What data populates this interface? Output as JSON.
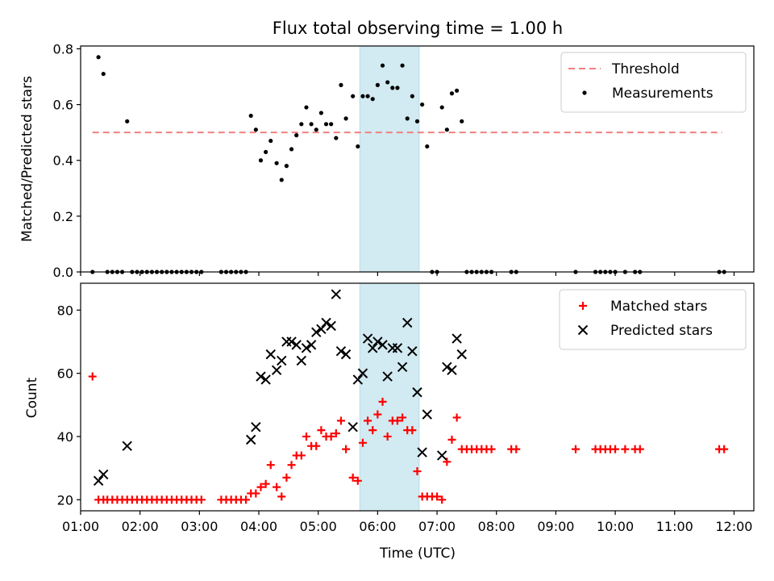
{
  "chart_data": [
    {
      "type": "scatter",
      "title": "Flux total observing time = 1.00 h",
      "xlabel": "",
      "ylabel": "Matched/Predicted stars",
      "xlim": [
        "01:00",
        "12:20"
      ],
      "ylim": [
        0,
        0.81
      ],
      "yticks": [
        0,
        0.2,
        0.4,
        0.6,
        0.8
      ],
      "yticklabels": [
        "0.0",
        "0.2",
        "0.4",
        "0.6",
        "0.8"
      ],
      "highlight_band": {
        "from": "05:42",
        "to": "06:42",
        "color": "#add8e6"
      },
      "grid": false,
      "legend_position": "top-right",
      "threshold": {
        "name": "Threshold",
        "value": 0.5,
        "from": "01:12",
        "to": "11:48",
        "color": "#f08080"
      },
      "series": [
        {
          "name": "Measurements",
          "color": "#000000",
          "points": [
            [
              "01:12",
              0
            ],
            [
              "01:18",
              0.77
            ],
            [
              "01:23",
              0.71
            ],
            [
              "01:27",
              0
            ],
            [
              "01:32",
              0
            ],
            [
              "01:37",
              0
            ],
            [
              "01:42",
              0
            ],
            [
              "01:47",
              0.54
            ],
            [
              "01:52",
              0
            ],
            [
              "01:57",
              0
            ],
            [
              "02:02",
              0
            ],
            [
              "02:07",
              0
            ],
            [
              "02:12",
              0
            ],
            [
              "02:17",
              0
            ],
            [
              "02:22",
              0
            ],
            [
              "02:27",
              0
            ],
            [
              "02:32",
              0
            ],
            [
              "02:37",
              0
            ],
            [
              "02:42",
              0
            ],
            [
              "02:47",
              0
            ],
            [
              "02:52",
              0
            ],
            [
              "02:57",
              0
            ],
            [
              "03:02",
              0
            ],
            [
              "03:22",
              0
            ],
            [
              "03:27",
              0
            ],
            [
              "03:32",
              0
            ],
            [
              "03:37",
              0
            ],
            [
              "03:42",
              0
            ],
            [
              "03:47",
              0
            ],
            [
              "03:52",
              0.56
            ],
            [
              "03:57",
              0.51
            ],
            [
              "04:02",
              0.4
            ],
            [
              "04:07",
              0.43
            ],
            [
              "04:12",
              0.47
            ],
            [
              "04:18",
              0.39
            ],
            [
              "04:23",
              0.33
            ],
            [
              "04:28",
              0.38
            ],
            [
              "04:33",
              0.44
            ],
            [
              "04:38",
              0.49
            ],
            [
              "04:43",
              0.53
            ],
            [
              "04:48",
              0.59
            ],
            [
              "04:53",
              0.53
            ],
            [
              "04:58",
              0.51
            ],
            [
              "05:03",
              0.57
            ],
            [
              "05:08",
              0.53
            ],
            [
              "05:13",
              0.53
            ],
            [
              "05:18",
              0.48
            ],
            [
              "05:23",
              0.67
            ],
            [
              "05:28",
              0.55
            ],
            [
              "05:35",
              0.63
            ],
            [
              "05:40",
              0.45
            ],
            [
              "05:45",
              0.63
            ],
            [
              "05:50",
              0.63
            ],
            [
              "05:55",
              0.62
            ],
            [
              "06:00",
              0.67
            ],
            [
              "06:05",
              0.74
            ],
            [
              "06:10",
              0.68
            ],
            [
              "06:15",
              0.66
            ],
            [
              "06:20",
              0.66
            ],
            [
              "06:25",
              0.74
            ],
            [
              "06:30",
              0.55
            ],
            [
              "06:35",
              0.63
            ],
            [
              "06:40",
              0.54
            ],
            [
              "06:45",
              0.6
            ],
            [
              "06:50",
              0.45
            ],
            [
              "06:55",
              0
            ],
            [
              "07:00",
              0
            ],
            [
              "07:05",
              0.59
            ],
            [
              "07:10",
              0.51
            ],
            [
              "07:15",
              0.64
            ],
            [
              "07:20",
              0.65
            ],
            [
              "07:25",
              0.54
            ],
            [
              "07:30",
              0
            ],
            [
              "07:35",
              0
            ],
            [
              "07:40",
              0
            ],
            [
              "07:45",
              0
            ],
            [
              "07:50",
              0
            ],
            [
              "07:55",
              0
            ],
            [
              "08:15",
              0
            ],
            [
              "08:20",
              0
            ],
            [
              "09:20",
              0
            ],
            [
              "09:40",
              0
            ],
            [
              "09:45",
              0
            ],
            [
              "09:50",
              0
            ],
            [
              "09:55",
              0
            ],
            [
              "10:00",
              0
            ],
            [
              "10:10",
              0
            ],
            [
              "10:20",
              0
            ],
            [
              "10:25",
              0
            ],
            [
              "11:45",
              0
            ],
            [
              "11:50",
              0
            ]
          ]
        }
      ]
    },
    {
      "type": "scatter",
      "title": "",
      "xlabel": "Time (UTC)",
      "ylabel": "Count",
      "xlim": [
        "01:00",
        "12:20"
      ],
      "ylim": [
        16.5,
        88.5
      ],
      "yticks": [
        20,
        40,
        60,
        80
      ],
      "yticklabels": [
        "20",
        "40",
        "60",
        "80"
      ],
      "xticks": [
        "01:00",
        "02:00",
        "03:00",
        "04:00",
        "05:00",
        "06:00",
        "07:00",
        "08:00",
        "09:00",
        "10:00",
        "11:00",
        "12:00"
      ],
      "highlight_band": {
        "from": "05:42",
        "to": "06:42",
        "color": "#add8e6"
      },
      "grid": false,
      "legend_position": "top-right",
      "series": [
        {
          "name": "Matched stars",
          "marker": "plus",
          "color": "#ff0000",
          "points": [
            [
              "01:12",
              59
            ],
            [
              "01:18",
              20
            ],
            [
              "01:23",
              20
            ],
            [
              "01:27",
              20
            ],
            [
              "01:32",
              20
            ],
            [
              "01:37",
              20
            ],
            [
              "01:42",
              20
            ],
            [
              "01:47",
              20
            ],
            [
              "01:52",
              20
            ],
            [
              "01:57",
              20
            ],
            [
              "02:02",
              20
            ],
            [
              "02:07",
              20
            ],
            [
              "02:12",
              20
            ],
            [
              "02:17",
              20
            ],
            [
              "02:22",
              20
            ],
            [
              "02:27",
              20
            ],
            [
              "02:32",
              20
            ],
            [
              "02:37",
              20
            ],
            [
              "02:42",
              20
            ],
            [
              "02:47",
              20
            ],
            [
              "02:52",
              20
            ],
            [
              "02:57",
              20
            ],
            [
              "03:02",
              20
            ],
            [
              "03:22",
              20
            ],
            [
              "03:27",
              20
            ],
            [
              "03:32",
              20
            ],
            [
              "03:37",
              20
            ],
            [
              "03:42",
              20
            ],
            [
              "03:47",
              20
            ],
            [
              "03:52",
              22
            ],
            [
              "03:57",
              22
            ],
            [
              "04:02",
              24
            ],
            [
              "04:07",
              25
            ],
            [
              "04:12",
              31
            ],
            [
              "04:18",
              24
            ],
            [
              "04:23",
              21
            ],
            [
              "04:28",
              27
            ],
            [
              "04:33",
              31
            ],
            [
              "04:38",
              34
            ],
            [
              "04:43",
              34
            ],
            [
              "04:48",
              40
            ],
            [
              "04:53",
              37
            ],
            [
              "04:58",
              37
            ],
            [
              "05:03",
              42
            ],
            [
              "05:08",
              40
            ],
            [
              "05:13",
              40
            ],
            [
              "05:18",
              41
            ],
            [
              "05:23",
              45
            ],
            [
              "05:28",
              36
            ],
            [
              "05:35",
              27
            ],
            [
              "05:40",
              26
            ],
            [
              "05:45",
              38
            ],
            [
              "05:50",
              45
            ],
            [
              "05:55",
              42
            ],
            [
              "06:00",
              47
            ],
            [
              "06:05",
              51
            ],
            [
              "06:10",
              40
            ],
            [
              "06:15",
              45
            ],
            [
              "06:20",
              45
            ],
            [
              "06:25",
              46
            ],
            [
              "06:30",
              42
            ],
            [
              "06:35",
              42
            ],
            [
              "06:40",
              29
            ],
            [
              "06:45",
              21
            ],
            [
              "06:50",
              21
            ],
            [
              "06:55",
              21
            ],
            [
              "07:00",
              21
            ],
            [
              "07:05",
              20
            ],
            [
              "07:10",
              32
            ],
            [
              "07:15",
              39
            ],
            [
              "07:20",
              46
            ],
            [
              "07:25",
              36
            ],
            [
              "07:30",
              36
            ],
            [
              "07:35",
              36
            ],
            [
              "07:40",
              36
            ],
            [
              "07:45",
              36
            ],
            [
              "07:50",
              36
            ],
            [
              "07:55",
              36
            ],
            [
              "08:15",
              36
            ],
            [
              "08:20",
              36
            ],
            [
              "09:20",
              36
            ],
            [
              "09:40",
              36
            ],
            [
              "09:45",
              36
            ],
            [
              "09:50",
              36
            ],
            [
              "09:55",
              36
            ],
            [
              "10:00",
              36
            ],
            [
              "10:10",
              36
            ],
            [
              "10:20",
              36
            ],
            [
              "10:25",
              36
            ],
            [
              "11:45",
              36
            ],
            [
              "11:50",
              36
            ]
          ]
        },
        {
          "name": "Predicted stars",
          "marker": "x",
          "color": "#000000",
          "points": [
            [
              "01:18",
              26
            ],
            [
              "01:23",
              28
            ],
            [
              "01:47",
              37
            ],
            [
              "03:52",
              39
            ],
            [
              "03:57",
              43
            ],
            [
              "04:02",
              59
            ],
            [
              "04:07",
              58
            ],
            [
              "04:12",
              66
            ],
            [
              "04:18",
              61
            ],
            [
              "04:23",
              64
            ],
            [
              "04:28",
              70
            ],
            [
              "04:33",
              70
            ],
            [
              "04:38",
              69
            ],
            [
              "04:43",
              64
            ],
            [
              "04:48",
              68
            ],
            [
              "04:53",
              69
            ],
            [
              "04:58",
              73
            ],
            [
              "05:03",
              74
            ],
            [
              "05:08",
              76
            ],
            [
              "05:13",
              75
            ],
            [
              "05:18",
              85
            ],
            [
              "05:23",
              67
            ],
            [
              "05:28",
              66
            ],
            [
              "05:35",
              43
            ],
            [
              "05:40",
              58
            ],
            [
              "05:45",
              60
            ],
            [
              "05:50",
              71
            ],
            [
              "05:55",
              68
            ],
            [
              "06:00",
              70
            ],
            [
              "06:05",
              69
            ],
            [
              "06:10",
              59
            ],
            [
              "06:15",
              68
            ],
            [
              "06:20",
              68
            ],
            [
              "06:25",
              62
            ],
            [
              "06:30",
              76
            ],
            [
              "06:35",
              67
            ],
            [
              "06:40",
              54
            ],
            [
              "06:45",
              35
            ],
            [
              "06:50",
              47
            ],
            [
              "07:05",
              34
            ],
            [
              "07:10",
              62
            ],
            [
              "07:15",
              61
            ],
            [
              "07:20",
              71
            ],
            [
              "07:25",
              66
            ]
          ]
        }
      ]
    }
  ]
}
